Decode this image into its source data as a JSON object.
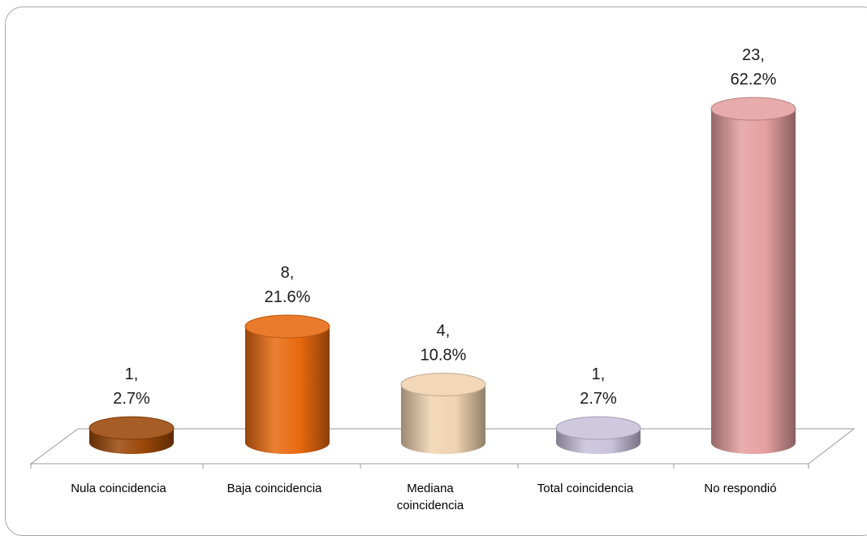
{
  "chart_data": {
    "type": "bar",
    "style": "3d-cylinder",
    "categories": [
      [
        "Nula coincidencia"
      ],
      [
        "Baja coincidencia"
      ],
      [
        "Mediana",
        "coincidencia"
      ],
      [
        "Total coincidencia"
      ],
      [
        "No respondió"
      ]
    ],
    "values": [
      1,
      8,
      4,
      1,
      23
    ],
    "value_labels": [
      "1,",
      "8,",
      "4,",
      "1,",
      "23,"
    ],
    "percent_labels": [
      "2.7%",
      "21.6%",
      "10.8%",
      "2.7%",
      "62.2%"
    ],
    "colors": [
      "#9a4708",
      "#e8690f",
      "#f0d3b0",
      "#c8c2dc",
      "#e59f9f"
    ],
    "grid": false,
    "legend": "none"
  }
}
